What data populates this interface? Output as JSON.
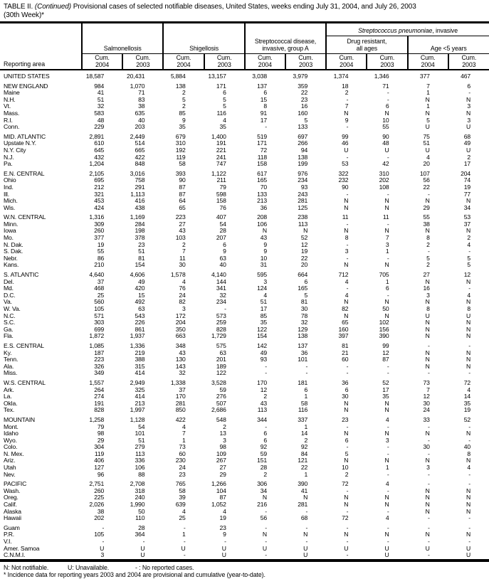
{
  "title": {
    "part1": "TABLE II.",
    "part2": "(Continued)",
    "part3": "Provisional cases of selected notifiable diseases, United States, weeks ending July 31, 2004, and July 26, 2003",
    "line2": "(30th Week)*"
  },
  "table": {
    "header": {
      "reporting_area": "Reporting area",
      "strep_pneumo_italic": "Streptococcus pneumoniae",
      "strep_pneumo_rest": ", invasive",
      "group_salmonellosis": "Salmonellosis",
      "group_shigellosis": "Shigellosis",
      "group_strep_a_line1": "Streptococcal disease,",
      "group_strep_a_line2": "invasive, group A",
      "group_drug_resistant_line1": "Drug resistant,",
      "group_drug_resistant_line2": "all ages",
      "group_age5": "Age <5 years",
      "cum": "Cum.",
      "years": [
        "2004",
        "2003",
        "2004",
        "2003",
        "2004",
        "2003",
        "2004",
        "2003",
        "2004",
        "2003"
      ]
    },
    "rows": [
      {
        "label": "UNITED STATES",
        "type": "us",
        "gap": true,
        "v": [
          "18,587",
          "20,431",
          "5,884",
          "13,157",
          "3,038",
          "3,979",
          "1,374",
          "1,346",
          "377",
          "467"
        ]
      },
      {
        "label": "NEW ENGLAND",
        "type": "region",
        "gap": true,
        "v": [
          "984",
          "1,070",
          "138",
          "171",
          "137",
          "359",
          "18",
          "71",
          "7",
          "6"
        ]
      },
      {
        "label": "Maine",
        "type": "state",
        "v": [
          "41",
          "71",
          "2",
          "6",
          "6",
          "22",
          "2",
          "-",
          "1",
          "-"
        ]
      },
      {
        "label": "N.H.",
        "type": "state",
        "v": [
          "51",
          "83",
          "5",
          "5",
          "15",
          "23",
          "-",
          "-",
          "N",
          "N"
        ]
      },
      {
        "label": "Vt.",
        "type": "state",
        "v": [
          "32",
          "38",
          "2",
          "5",
          "8",
          "16",
          "7",
          "6",
          "1",
          "3"
        ]
      },
      {
        "label": "Mass.",
        "type": "state",
        "v": [
          "583",
          "635",
          "85",
          "116",
          "91",
          "160",
          "N",
          "N",
          "N",
          "N"
        ]
      },
      {
        "label": "R.I.",
        "type": "state",
        "v": [
          "48",
          "40",
          "9",
          "4",
          "17",
          "5",
          "9",
          "10",
          "5",
          "3"
        ]
      },
      {
        "label": "Conn.",
        "type": "state",
        "v": [
          "229",
          "203",
          "35",
          "35",
          "-",
          "133",
          "-",
          "55",
          "U",
          "U"
        ]
      },
      {
        "label": "MID. ATLANTIC",
        "type": "region",
        "gap": true,
        "v": [
          "2,891",
          "2,449",
          "679",
          "1,400",
          "519",
          "697",
          "99",
          "90",
          "75",
          "68"
        ]
      },
      {
        "label": "Upstate N.Y.",
        "type": "state",
        "v": [
          "610",
          "514",
          "310",
          "191",
          "171",
          "266",
          "46",
          "48",
          "51",
          "49"
        ]
      },
      {
        "label": "N.Y. City",
        "type": "state",
        "v": [
          "645",
          "665",
          "192",
          "221",
          "72",
          "94",
          "U",
          "U",
          "U",
          "U"
        ]
      },
      {
        "label": "N.J.",
        "type": "state",
        "v": [
          "432",
          "422",
          "119",
          "241",
          "118",
          "138",
          "-",
          "-",
          "4",
          "2"
        ]
      },
      {
        "label": "Pa.",
        "type": "state",
        "v": [
          "1,204",
          "848",
          "58",
          "747",
          "158",
          "199",
          "53",
          "42",
          "20",
          "17"
        ]
      },
      {
        "label": "E.N. CENTRAL",
        "type": "region",
        "gap": true,
        "v": [
          "2,105",
          "3,016",
          "393",
          "1,122",
          "617",
          "976",
          "322",
          "310",
          "107",
          "204"
        ]
      },
      {
        "label": "Ohio",
        "type": "state",
        "v": [
          "695",
          "758",
          "90",
          "211",
          "165",
          "234",
          "232",
          "202",
          "56",
          "74"
        ]
      },
      {
        "label": "Ind.",
        "type": "state",
        "v": [
          "212",
          "291",
          "87",
          "79",
          "70",
          "93",
          "90",
          "108",
          "22",
          "19"
        ]
      },
      {
        "label": "Ill.",
        "type": "state",
        "v": [
          "321",
          "1,113",
          "87",
          "598",
          "133",
          "243",
          "-",
          "-",
          "-",
          "77"
        ]
      },
      {
        "label": "Mich.",
        "type": "state",
        "v": [
          "453",
          "416",
          "64",
          "158",
          "213",
          "281",
          "N",
          "N",
          "N",
          "N"
        ]
      },
      {
        "label": "Wis.",
        "type": "state",
        "v": [
          "424",
          "438",
          "65",
          "76",
          "36",
          "125",
          "N",
          "N",
          "29",
          "34"
        ]
      },
      {
        "label": "W.N. CENTRAL",
        "type": "region",
        "gap": true,
        "v": [
          "1,316",
          "1,169",
          "223",
          "407",
          "208",
          "238",
          "11",
          "11",
          "55",
          "53"
        ]
      },
      {
        "label": "Minn.",
        "type": "state",
        "v": [
          "309",
          "284",
          "27",
          "54",
          "106",
          "113",
          "-",
          "-",
          "38",
          "37"
        ]
      },
      {
        "label": "Iowa",
        "type": "state",
        "v": [
          "260",
          "198",
          "43",
          "28",
          "N",
          "N",
          "N",
          "N",
          "N",
          "N"
        ]
      },
      {
        "label": "Mo.",
        "type": "state",
        "v": [
          "377",
          "378",
          "103",
          "207",
          "43",
          "52",
          "8",
          "7",
          "8",
          "2"
        ]
      },
      {
        "label": "N. Dak.",
        "type": "state",
        "v": [
          "19",
          "23",
          "2",
          "6",
          "9",
          "12",
          "-",
          "3",
          "2",
          "4"
        ]
      },
      {
        "label": "S. Dak.",
        "type": "state",
        "v": [
          "55",
          "51",
          "7",
          "9",
          "9",
          "19",
          "3",
          "1",
          "-",
          "-"
        ]
      },
      {
        "label": "Nebr.",
        "type": "state",
        "v": [
          "86",
          "81",
          "11",
          "63",
          "10",
          "22",
          "-",
          "-",
          "5",
          "5"
        ]
      },
      {
        "label": "Kans.",
        "type": "state",
        "v": [
          "210",
          "154",
          "30",
          "40",
          "31",
          "20",
          "N",
          "N",
          "2",
          "5"
        ]
      },
      {
        "label": "S. ATLANTIC",
        "type": "region",
        "gap": true,
        "v": [
          "4,640",
          "4,606",
          "1,578",
          "4,140",
          "595",
          "664",
          "712",
          "705",
          "27",
          "12"
        ]
      },
      {
        "label": "Del.",
        "type": "state",
        "v": [
          "37",
          "49",
          "4",
          "144",
          "3",
          "6",
          "4",
          "1",
          "N",
          "N"
        ]
      },
      {
        "label": "Md.",
        "type": "state",
        "v": [
          "468",
          "420",
          "76",
          "341",
          "124",
          "165",
          "-",
          "6",
          "16",
          "-"
        ]
      },
      {
        "label": "D.C.",
        "type": "state",
        "v": [
          "25",
          "15",
          "24",
          "32",
          "4",
          "5",
          "4",
          "-",
          "3",
          "4"
        ]
      },
      {
        "label": "Va.",
        "type": "state",
        "v": [
          "560",
          "492",
          "82",
          "234",
          "51",
          "81",
          "N",
          "N",
          "N",
          "N"
        ]
      },
      {
        "label": "W. Va.",
        "type": "state",
        "v": [
          "105",
          "63",
          "3",
          "-",
          "17",
          "30",
          "82",
          "50",
          "8",
          "8"
        ]
      },
      {
        "label": "N.C.",
        "type": "state",
        "v": [
          "571",
          "543",
          "172",
          "573",
          "85",
          "78",
          "N",
          "N",
          "U",
          "U"
        ]
      },
      {
        "label": "S.C.",
        "type": "state",
        "v": [
          "303",
          "226",
          "204",
          "259",
          "35",
          "32",
          "65",
          "102",
          "N",
          "N"
        ]
      },
      {
        "label": "Ga.",
        "type": "state",
        "v": [
          "699",
          "861",
          "350",
          "828",
          "122",
          "129",
          "160",
          "156",
          "N",
          "N"
        ]
      },
      {
        "label": "Fla.",
        "type": "state",
        "v": [
          "1,872",
          "1,937",
          "663",
          "1,729",
          "154",
          "138",
          "397",
          "390",
          "N",
          "N"
        ]
      },
      {
        "label": "E.S. CENTRAL",
        "type": "region",
        "gap": true,
        "v": [
          "1,085",
          "1,336",
          "348",
          "575",
          "142",
          "137",
          "81",
          "99",
          "-",
          "-"
        ]
      },
      {
        "label": "Ky.",
        "type": "state",
        "v": [
          "187",
          "219",
          "43",
          "63",
          "49",
          "36",
          "21",
          "12",
          "N",
          "N"
        ]
      },
      {
        "label": "Tenn.",
        "type": "state",
        "v": [
          "223",
          "388",
          "130",
          "201",
          "93",
          "101",
          "60",
          "87",
          "N",
          "N"
        ]
      },
      {
        "label": "Ala.",
        "type": "state",
        "v": [
          "326",
          "315",
          "143",
          "189",
          "-",
          "-",
          "-",
          "-",
          "N",
          "N"
        ]
      },
      {
        "label": "Miss.",
        "type": "state",
        "v": [
          "349",
          "414",
          "32",
          "122",
          "-",
          "-",
          "-",
          "-",
          "-",
          "-"
        ]
      },
      {
        "label": "W.S. CENTRAL",
        "type": "region",
        "gap": true,
        "v": [
          "1,557",
          "2,949",
          "1,338",
          "3,528",
          "170",
          "181",
          "36",
          "52",
          "73",
          "72"
        ]
      },
      {
        "label": "Ark.",
        "type": "state",
        "v": [
          "264",
          "325",
          "37",
          "59",
          "12",
          "6",
          "6",
          "17",
          "7",
          "4"
        ]
      },
      {
        "label": "La.",
        "type": "state",
        "v": [
          "274",
          "414",
          "170",
          "276",
          "2",
          "1",
          "30",
          "35",
          "12",
          "14"
        ]
      },
      {
        "label": "Okla.",
        "type": "state",
        "v": [
          "191",
          "213",
          "281",
          "507",
          "43",
          "58",
          "N",
          "N",
          "30",
          "35"
        ]
      },
      {
        "label": "Tex.",
        "type": "state",
        "v": [
          "828",
          "1,997",
          "850",
          "2,686",
          "113",
          "116",
          "N",
          "N",
          "24",
          "19"
        ]
      },
      {
        "label": "MOUNTAIN",
        "type": "region",
        "gap": true,
        "v": [
          "1,258",
          "1,128",
          "422",
          "548",
          "344",
          "337",
          "23",
          "4",
          "33",
          "52"
        ]
      },
      {
        "label": "Mont.",
        "type": "state",
        "v": [
          "79",
          "54",
          "4",
          "2",
          "-",
          "1",
          "-",
          "-",
          "-",
          "-"
        ]
      },
      {
        "label": "Idaho",
        "type": "state",
        "v": [
          "98",
          "101",
          "7",
          "13",
          "6",
          "14",
          "N",
          "N",
          "N",
          "N"
        ]
      },
      {
        "label": "Wyo.",
        "type": "state",
        "v": [
          "29",
          "51",
          "1",
          "3",
          "6",
          "2",
          "6",
          "3",
          "-",
          "-"
        ]
      },
      {
        "label": "Colo.",
        "type": "state",
        "v": [
          "304",
          "279",
          "73",
          "98",
          "92",
          "92",
          "-",
          "-",
          "30",
          "40"
        ]
      },
      {
        "label": "N. Mex.",
        "type": "state",
        "v": [
          "119",
          "113",
          "60",
          "109",
          "59",
          "84",
          "5",
          "-",
          "-",
          "8"
        ]
      },
      {
        "label": "Ariz.",
        "type": "state",
        "v": [
          "406",
          "336",
          "230",
          "267",
          "151",
          "121",
          "N",
          "N",
          "N",
          "N"
        ]
      },
      {
        "label": "Utah",
        "type": "state",
        "v": [
          "127",
          "106",
          "24",
          "27",
          "28",
          "22",
          "10",
          "1",
          "3",
          "4"
        ]
      },
      {
        "label": "Nev.",
        "type": "state",
        "v": [
          "96",
          "88",
          "23",
          "29",
          "2",
          "1",
          "2",
          "-",
          "-",
          "-"
        ]
      },
      {
        "label": "PACIFIC",
        "type": "region",
        "gap": true,
        "v": [
          "2,751",
          "2,708",
          "765",
          "1,266",
          "306",
          "390",
          "72",
          "4",
          "-",
          "-"
        ]
      },
      {
        "label": "Wash.",
        "type": "state",
        "v": [
          "260",
          "318",
          "58",
          "104",
          "34",
          "41",
          "-",
          "-",
          "N",
          "N"
        ]
      },
      {
        "label": "Oreg.",
        "type": "state",
        "v": [
          "225",
          "240",
          "39",
          "87",
          "N",
          "N",
          "N",
          "N",
          "N",
          "N"
        ]
      },
      {
        "label": "Calif.",
        "type": "state",
        "v": [
          "2,026",
          "1,990",
          "639",
          "1,052",
          "216",
          "281",
          "N",
          "N",
          "N",
          "N"
        ]
      },
      {
        "label": "Alaska",
        "type": "state",
        "v": [
          "38",
          "50",
          "4",
          "4",
          "-",
          "-",
          "-",
          "-",
          "N",
          "N"
        ]
      },
      {
        "label": "Hawaii",
        "type": "state",
        "v": [
          "202",
          "110",
          "25",
          "19",
          "56",
          "68",
          "72",
          "4",
          "-",
          "-"
        ]
      },
      {
        "label": "Guam",
        "type": "territory",
        "gap": true,
        "v": [
          "-",
          "28",
          "-",
          "23",
          "-",
          "-",
          "-",
          "-",
          "-",
          "-"
        ]
      },
      {
        "label": "P.R.",
        "type": "territory",
        "v": [
          "105",
          "364",
          "1",
          "9",
          "N",
          "N",
          "N",
          "N",
          "N",
          "N"
        ]
      },
      {
        "label": "V.I.",
        "type": "territory",
        "v": [
          "-",
          "-",
          "-",
          "-",
          "-",
          "-",
          "-",
          "-",
          "-",
          "-"
        ]
      },
      {
        "label": "Amer. Samoa",
        "type": "territory",
        "v": [
          "U",
          "U",
          "U",
          "U",
          "U",
          "U",
          "U",
          "U",
          "U",
          "U"
        ]
      },
      {
        "label": "C.N.M.I.",
        "type": "territory",
        "v": [
          "3",
          "U",
          "-",
          "U",
          "-",
          "U",
          "-",
          "U",
          "-",
          "U"
        ]
      }
    ]
  },
  "footnotes": {
    "n": "N: Not notifiable.",
    "u": "U: Unavailable.",
    "dash": "- : No reported cases.",
    "asterisk": "* Incidence data for reporting years 2003 and 2004 are provisional and cumulative (year-to-date)."
  }
}
